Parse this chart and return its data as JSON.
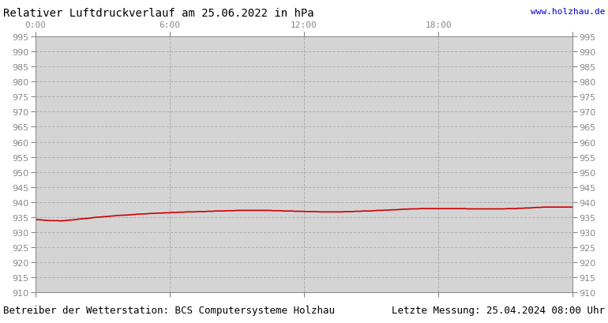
{
  "title": "Relativer Luftdruckverlauf am 25.06.2022 in hPa",
  "url_text": "www.holzhau.de",
  "footer_left": "Betreiber der Wetterstation: BCS Computersysteme Holzhau",
  "footer_right": "Letzte Messung: 25.04.2024 08:00 Uhr",
  "ylim": [
    910,
    995
  ],
  "ytick_step": 5,
  "xlim": [
    0,
    1440
  ],
  "xticks": [
    0,
    360,
    720,
    1080,
    1440
  ],
  "xtick_labels": [
    "0:00",
    "6:00",
    "12:00",
    "18:00",
    ""
  ],
  "bg_color": "#ffffff",
  "plot_bg_color": "#d4d4d4",
  "grid_color": "#b0b0b0",
  "line_color": "#cc0000",
  "line_width": 1.2,
  "title_color": "#000000",
  "url_color": "#0000cc",
  "ylabel_color": "#888888",
  "xlabel_color": "#888888",
  "footer_color": "#000000",
  "pressure_data": [
    934.2,
    934.1,
    934.0,
    933.9,
    933.8,
    933.8,
    933.8,
    933.7,
    933.8,
    933.9,
    934.0,
    934.1,
    934.3,
    934.4,
    934.5,
    934.6,
    934.8,
    934.9,
    935.0,
    935.1,
    935.2,
    935.3,
    935.4,
    935.5,
    935.6,
    935.6,
    935.7,
    935.8,
    935.9,
    936.0,
    936.0,
    936.1,
    936.2,
    936.2,
    936.3,
    936.3,
    936.4,
    936.4,
    936.5,
    936.5,
    936.6,
    936.6,
    936.7,
    936.7,
    936.7,
    936.8,
    936.8,
    936.8,
    936.9,
    936.9,
    937.0,
    937.0,
    937.0,
    937.1,
    937.1,
    937.1,
    937.2,
    937.2,
    937.2,
    937.2,
    937.2,
    937.2,
    937.2,
    937.2,
    937.2,
    937.2,
    937.1,
    937.1,
    937.1,
    937.0,
    937.0,
    937.0,
    936.9,
    936.9,
    936.9,
    936.8,
    936.8,
    936.8,
    936.8,
    936.7,
    936.7,
    936.7,
    936.7,
    936.7,
    936.7,
    936.7,
    936.8,
    936.8,
    936.8,
    936.9,
    936.9,
    937.0,
    937.0,
    937.0,
    937.1,
    937.2,
    937.2,
    937.3,
    937.3,
    937.4,
    937.4,
    937.5,
    937.6,
    937.6,
    937.7,
    937.7,
    937.7,
    937.8,
    937.8,
    937.8,
    937.8,
    937.8,
    937.8,
    937.8,
    937.8,
    937.8,
    937.8,
    937.8,
    937.8,
    937.8,
    937.7,
    937.7,
    937.7,
    937.7,
    937.7,
    937.7,
    937.7,
    937.7,
    937.7,
    937.7,
    937.7,
    937.8,
    937.8,
    937.8,
    937.9,
    937.9,
    938.0,
    938.0,
    938.1,
    938.2,
    938.2,
    938.3,
    938.3,
    938.3,
    938.3,
    938.3,
    938.3,
    938.3,
    938.3,
    938.3
  ],
  "title_fontsize": 10,
  "tick_fontsize": 8,
  "footer_fontsize": 9
}
